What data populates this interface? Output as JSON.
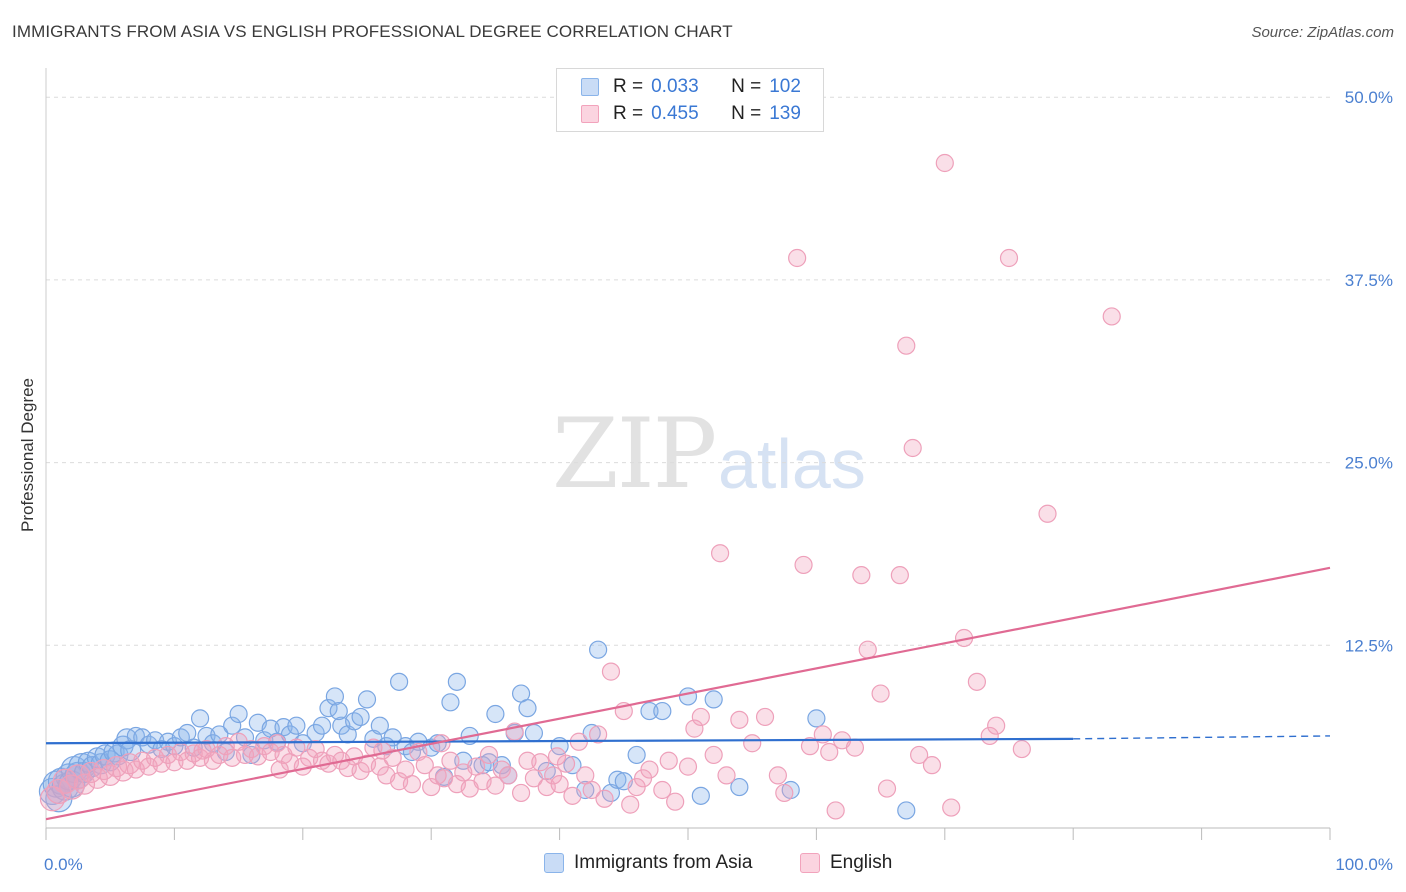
{
  "header": {
    "title": "IMMIGRANTS FROM ASIA VS ENGLISH PROFESSIONAL DEGREE CORRELATION CHART",
    "source": "Source: ZipAtlas.com"
  },
  "watermark": {
    "zip": "ZIP",
    "atlas": "atlas"
  },
  "legend_top": {
    "rows": [
      {
        "r_label": "R =",
        "r_value": "0.033",
        "n_label": "N =",
        "n_value": "102",
        "color": "#8ab4ea"
      },
      {
        "r_label": "R =",
        "r_value": "0.455",
        "n_label": "N =",
        "n_value": "139",
        "color": "#f2a3bc"
      }
    ]
  },
  "legend_bottom": {
    "items": [
      {
        "label": "Immigrants from Asia",
        "color": "#8ab4ea"
      },
      {
        "label": "English",
        "color": "#f2a3bc"
      }
    ]
  },
  "chart_data": {
    "type": "scatter",
    "title": "IMMIGRANTS FROM ASIA VS ENGLISH PROFESSIONAL DEGREE CORRELATION CHART",
    "xlabel": "",
    "ylabel": "Professional Degree",
    "xlim": [
      0,
      100
    ],
    "ylim": [
      0,
      52
    ],
    "x_tick_labels": [
      "0.0%",
      "100.0%"
    ],
    "y_ticks": [
      12.5,
      25.0,
      37.5,
      50.0
    ],
    "y_tick_labels": [
      "12.5%",
      "25.0%",
      "37.5%",
      "50.0%"
    ],
    "grid": true,
    "colors": {
      "asia": "#8ab4ea",
      "asia_line": "#2f6fcf",
      "english": "#f2a3bc",
      "english_line": "#e06a93"
    },
    "series": [
      {
        "name": "Immigrants from Asia",
        "trend": {
          "x0": 0,
          "y0": 5.8,
          "x1": 80,
          "y1": 6.1,
          "dash_to": 100,
          "dash_y": 6.3
        },
        "points": [
          [
            0.5,
            2.5
          ],
          [
            0.8,
            3.0
          ],
          [
            1.0,
            2.0
          ],
          [
            1.2,
            3.2
          ],
          [
            1.5,
            2.8
          ],
          [
            1.8,
            3.5
          ],
          [
            2.0,
            3.0
          ],
          [
            2.2,
            4.0
          ],
          [
            2.5,
            3.6
          ],
          [
            2.8,
            4.2
          ],
          [
            3.0,
            3.8
          ],
          [
            3.3,
            4.5
          ],
          [
            3.6,
            4.2
          ],
          [
            4.0,
            4.8
          ],
          [
            4.3,
            4.4
          ],
          [
            4.6,
            5.0
          ],
          [
            5.0,
            4.6
          ],
          [
            5.3,
            5.2
          ],
          [
            5.6,
            5.0
          ],
          [
            6.0,
            5.6
          ],
          [
            6.3,
            6.1
          ],
          [
            6.6,
            5.3
          ],
          [
            7.0,
            6.3
          ],
          [
            7.5,
            6.2
          ],
          [
            8.0,
            5.7
          ],
          [
            8.5,
            6.0
          ],
          [
            9.0,
            5.4
          ],
          [
            9.5,
            5.9
          ],
          [
            10.0,
            5.6
          ],
          [
            10.5,
            6.2
          ],
          [
            11.0,
            6.5
          ],
          [
            11.5,
            5.5
          ],
          [
            12.0,
            7.5
          ],
          [
            12.5,
            6.3
          ],
          [
            13.0,
            5.8
          ],
          [
            13.5,
            6.4
          ],
          [
            14.0,
            5.2
          ],
          [
            14.5,
            7.0
          ],
          [
            15.0,
            7.8
          ],
          [
            15.5,
            6.2
          ],
          [
            16.0,
            5.0
          ],
          [
            16.5,
            7.2
          ],
          [
            17.0,
            6.0
          ],
          [
            17.5,
            6.8
          ],
          [
            18.0,
            5.9
          ],
          [
            18.5,
            6.9
          ],
          [
            19.0,
            6.4
          ],
          [
            19.5,
            7.0
          ],
          [
            20.0,
            5.8
          ],
          [
            21.0,
            6.5
          ],
          [
            21.5,
            7.0
          ],
          [
            22.0,
            8.2
          ],
          [
            22.5,
            9.0
          ],
          [
            23.0,
            7.0
          ],
          [
            23.5,
            6.4
          ],
          [
            24.0,
            7.3
          ],
          [
            24.5,
            7.6
          ],
          [
            25.0,
            8.8
          ],
          [
            25.5,
            6.1
          ],
          [
            26.0,
            7.0
          ],
          [
            26.5,
            5.6
          ],
          [
            27.0,
            6.2
          ],
          [
            27.5,
            10.0
          ],
          [
            28.0,
            5.6
          ],
          [
            28.5,
            5.2
          ],
          [
            29.0,
            5.9
          ],
          [
            30.0,
            5.5
          ],
          [
            30.5,
            5.8
          ],
          [
            31.0,
            3.5
          ],
          [
            31.5,
            8.6
          ],
          [
            32.0,
            10.0
          ],
          [
            32.5,
            4.6
          ],
          [
            33.0,
            6.3
          ],
          [
            34.0,
            4.3
          ],
          [
            34.5,
            4.5
          ],
          [
            35.0,
            7.8
          ],
          [
            35.5,
            4.3
          ],
          [
            36.0,
            3.6
          ],
          [
            37.0,
            9.2
          ],
          [
            37.5,
            8.2
          ],
          [
            38.0,
            6.5
          ],
          [
            39.0,
            3.9
          ],
          [
            40.0,
            5.6
          ],
          [
            41.0,
            4.3
          ],
          [
            42.0,
            2.6
          ],
          [
            42.5,
            6.5
          ],
          [
            43.0,
            12.2
          ],
          [
            44.0,
            2.4
          ],
          [
            44.5,
            3.3
          ],
          [
            45.0,
            3.2
          ],
          [
            46.0,
            5.0
          ],
          [
            47.0,
            8.0
          ],
          [
            48.0,
            8.0
          ],
          [
            50.0,
            9.0
          ],
          [
            51.0,
            2.2
          ],
          [
            52.0,
            8.8
          ],
          [
            54.0,
            2.8
          ],
          [
            58.0,
            2.6
          ],
          [
            60.0,
            7.5
          ],
          [
            67.0,
            1.2
          ],
          [
            22.8,
            8.0
          ],
          [
            36.5,
            6.5
          ]
        ]
      },
      {
        "name": "English",
        "trend": {
          "x0": 0,
          "y0": 0.6,
          "x1": 100,
          "y1": 17.8
        },
        "points": [
          [
            0.5,
            2.0
          ],
          [
            1.0,
            2.5
          ],
          [
            1.5,
            3.2
          ],
          [
            2.0,
            2.8
          ],
          [
            2.5,
            3.5
          ],
          [
            3.0,
            3.0
          ],
          [
            3.5,
            3.8
          ],
          [
            4.0,
            3.4
          ],
          [
            4.5,
            4.0
          ],
          [
            5.0,
            3.6
          ],
          [
            5.5,
            4.2
          ],
          [
            6.0,
            3.9
          ],
          [
            6.5,
            4.4
          ],
          [
            7.0,
            4.0
          ],
          [
            7.5,
            4.6
          ],
          [
            8.0,
            4.2
          ],
          [
            8.5,
            4.8
          ],
          [
            9.0,
            4.4
          ],
          [
            9.5,
            5.0
          ],
          [
            10.0,
            4.5
          ],
          [
            10.5,
            5.2
          ],
          [
            11.0,
            4.6
          ],
          [
            11.5,
            5.1
          ],
          [
            12.0,
            4.8
          ],
          [
            12.5,
            5.4
          ],
          [
            13.0,
            4.6
          ],
          [
            13.5,
            5.0
          ],
          [
            14.0,
            5.6
          ],
          [
            14.5,
            4.8
          ],
          [
            15.0,
            5.9
          ],
          [
            15.5,
            5.0
          ],
          [
            16.0,
            5.4
          ],
          [
            16.5,
            4.9
          ],
          [
            17.0,
            5.6
          ],
          [
            17.5,
            5.2
          ],
          [
            18.0,
            5.8
          ],
          [
            18.5,
            5.0
          ],
          [
            19.0,
            4.5
          ],
          [
            19.5,
            5.5
          ],
          [
            20.0,
            4.2
          ],
          [
            20.5,
            4.8
          ],
          [
            21.0,
            5.4
          ],
          [
            21.5,
            4.6
          ],
          [
            22.0,
            4.4
          ],
          [
            22.5,
            5.0
          ],
          [
            23.0,
            4.6
          ],
          [
            23.5,
            4.1
          ],
          [
            24.0,
            4.9
          ],
          [
            24.5,
            3.9
          ],
          [
            25.0,
            4.4
          ],
          [
            25.5,
            5.5
          ],
          [
            26.0,
            4.2
          ],
          [
            26.5,
            3.6
          ],
          [
            27.0,
            4.8
          ],
          [
            27.5,
            3.2
          ],
          [
            28.0,
            4.0
          ],
          [
            28.5,
            3.0
          ],
          [
            29.0,
            5.2
          ],
          [
            29.5,
            4.3
          ],
          [
            30.0,
            2.8
          ],
          [
            30.5,
            3.6
          ],
          [
            31.0,
            3.4
          ],
          [
            31.5,
            4.6
          ],
          [
            32.0,
            3.0
          ],
          [
            32.5,
            3.8
          ],
          [
            33.0,
            2.7
          ],
          [
            33.5,
            4.2
          ],
          [
            34.0,
            3.2
          ],
          [
            34.5,
            5.0
          ],
          [
            35.0,
            2.9
          ],
          [
            35.5,
            4.0
          ],
          [
            36.0,
            3.6
          ],
          [
            36.5,
            6.6
          ],
          [
            37.0,
            2.4
          ],
          [
            37.5,
            4.6
          ],
          [
            38.0,
            3.4
          ],
          [
            38.5,
            4.5
          ],
          [
            39.0,
            2.8
          ],
          [
            39.5,
            3.6
          ],
          [
            40.0,
            3.0
          ],
          [
            40.5,
            4.4
          ],
          [
            41.0,
            2.2
          ],
          [
            41.5,
            5.9
          ],
          [
            42.0,
            3.6
          ],
          [
            42.5,
            2.6
          ],
          [
            43.0,
            6.4
          ],
          [
            43.5,
            2.0
          ],
          [
            44.0,
            10.7
          ],
          [
            45.0,
            8.0
          ],
          [
            45.5,
            1.6
          ],
          [
            46.0,
            2.8
          ],
          [
            46.5,
            3.4
          ],
          [
            47.0,
            4.0
          ],
          [
            48.0,
            2.6
          ],
          [
            48.5,
            4.6
          ],
          [
            49.0,
            1.8
          ],
          [
            50.0,
            4.2
          ],
          [
            50.5,
            6.8
          ],
          [
            51.0,
            7.6
          ],
          [
            52.0,
            5.0
          ],
          [
            52.5,
            18.8
          ],
          [
            53.0,
            3.6
          ],
          [
            54.0,
            7.4
          ],
          [
            55.0,
            5.8
          ],
          [
            56.0,
            7.6
          ],
          [
            57.0,
            3.6
          ],
          [
            57.5,
            2.4
          ],
          [
            58.5,
            39.0
          ],
          [
            59.0,
            18.0
          ],
          [
            59.5,
            5.6
          ],
          [
            60.5,
            6.4
          ],
          [
            61.0,
            5.2
          ],
          [
            61.5,
            1.2
          ],
          [
            62.0,
            6.0
          ],
          [
            63.0,
            5.5
          ],
          [
            63.5,
            17.3
          ],
          [
            64.0,
            12.2
          ],
          [
            65.0,
            9.2
          ],
          [
            65.5,
            2.7
          ],
          [
            66.5,
            17.3
          ],
          [
            67.0,
            33.0
          ],
          [
            67.5,
            26.0
          ],
          [
            68.0,
            5.0
          ],
          [
            69.0,
            4.3
          ],
          [
            70.0,
            45.5
          ],
          [
            70.5,
            1.4
          ],
          [
            71.5,
            13.0
          ],
          [
            72.5,
            10.0
          ],
          [
            73.5,
            6.3
          ],
          [
            74.0,
            7.0
          ],
          [
            75.0,
            39.0
          ],
          [
            76.0,
            5.4
          ],
          [
            78.0,
            21.5
          ],
          [
            83.0,
            35.0
          ],
          [
            26.2,
            5.3
          ],
          [
            18.2,
            4.0
          ],
          [
            12.2,
            5.3
          ],
          [
            30.8,
            5.8
          ],
          [
            39.8,
            4.9
          ]
        ]
      }
    ]
  }
}
